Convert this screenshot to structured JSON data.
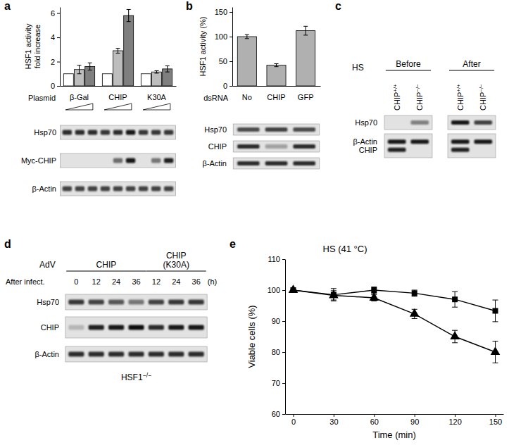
{
  "panel_labels": [
    "a",
    "b",
    "c",
    "d",
    "e"
  ],
  "chart_data": [
    {
      "type": "bar",
      "ylabel": [
        "HSF1 activity",
        "fold increase"
      ],
      "xlabel": "Plasmid",
      "categories": [
        "β-Gal",
        "CHIP",
        "K30A"
      ],
      "series": [
        {
          "color": "#ffffff",
          "values": [
            1,
            1,
            1
          ],
          "errors": [
            null,
            null,
            null
          ]
        },
        {
          "color": "#bdbdbd",
          "values": [
            1.35,
            2.9,
            1.15
          ],
          "errors": [
            0.35,
            0.2,
            0.1
          ]
        },
        {
          "color": "#7f7f7f",
          "values": [
            1.6,
            5.8,
            1.4
          ],
          "errors": [
            0.3,
            0.5,
            0.25
          ]
        }
      ],
      "ylim": [
        0,
        6.5
      ],
      "yticks": [
        0,
        2,
        4,
        6
      ]
    },
    {
      "type": "bar",
      "ylabel": "HSF1 activity (%)",
      "xlabel": "dsRNA",
      "categories": [
        "No",
        "CHIP",
        "GFP"
      ],
      "values": [
        100,
        42,
        112
      ],
      "errors": [
        4,
        3,
        9
      ],
      "color": "#b0b0b0",
      "ylim": [
        0,
        160
      ],
      "yticks": [
        0,
        50,
        100,
        150
      ]
    },
    {
      "type": "line",
      "title": "HS (41 °C)",
      "xlabel": "Time (min)",
      "ylabel": "Viable cells (%)",
      "x": [
        0,
        30,
        60,
        90,
        120,
        150
      ],
      "series": [
        {
          "color": "#000000",
          "marker": "square",
          "line_style": "solid",
          "values": [
            100,
            98.5,
            100,
            99,
            97,
            93.3
          ],
          "errors": [
            null,
            2,
            1,
            1,
            2.5,
            3.5
          ]
        },
        {
          "color": "#000000",
          "marker": "triangle",
          "line_style": "solid",
          "values": [
            100,
            98.3,
            97.5,
            92.3,
            85,
            80
          ],
          "errors": [
            null,
            1.5,
            1,
            1.5,
            2,
            3.5
          ]
        }
      ],
      "xlim": [
        -6,
        156
      ],
      "xticks": [
        0,
        30,
        60,
        90,
        120,
        150
      ],
      "ylim": [
        60,
        110
      ],
      "yticks": [
        60,
        70,
        80,
        90,
        100,
        110
      ]
    }
  ],
  "blots": {
    "a": {
      "boxes": [
        {
          "rows": [
            {
              "label": "Hsp70",
              "bands": [
                0.85,
                0.85,
                0.85,
                0.8,
                0.85,
                0.95,
                0.8,
                0.8,
                0.8
              ]
            }
          ]
        },
        {
          "rows": [
            {
              "label": "Myc-CHIP",
              "bands": [
                0,
                0,
                0,
                0,
                0.55,
                0.95,
                0,
                0.5,
                0.9
              ]
            }
          ]
        },
        {
          "rows": [
            {
              "label": "β-Actin",
              "bands": [
                0.75,
                0.75,
                0.75,
                0.75,
                0.75,
                0.75,
                0.75,
                0.75,
                0.75
              ]
            }
          ]
        }
      ]
    },
    "b": {
      "boxes": [
        {
          "rows": [
            {
              "label": "Hsp70",
              "bands": [
                0.7,
                0.75,
                0.7
              ]
            }
          ]
        },
        {
          "rows": [
            {
              "label": "CHIP",
              "bands": [
                0.85,
                0.3,
                0.85
              ]
            }
          ]
        },
        {
          "rows": [
            {
              "label": "β-Actin",
              "bands": [
                0.85,
                0.85,
                0.85
              ]
            }
          ]
        }
      ]
    },
    "c": {
      "title": "HS",
      "groups": [
        {
          "label": [
            "Before"
          ],
          "lanes": 2
        },
        {
          "label": [
            "After"
          ],
          "lanes": 2
        }
      ],
      "lanes": [
        "CHIP+/+",
        "CHIP−/−",
        "CHIP+/+",
        "CHIP−/−"
      ],
      "boxes": [
        {
          "rows": [
            {
              "label": "Hsp70",
              "bands": [
                0,
                0.45,
                0.95,
                0.75
              ]
            }
          ]
        },
        {
          "rows": [
            {
              "label": "β-Actin",
              "bands": [
                0.95,
                0.95,
                0.95,
                0.95
              ]
            },
            {
              "label": "CHIP",
              "bands": [
                0.9,
                0,
                0.9,
                0
              ]
            }
          ]
        }
      ]
    },
    "d": {
      "title": "AdV",
      "groups": [
        {
          "label": [
            "CHIP"
          ],
          "lanes": 4
        },
        {
          "label": [
            "CHIP",
            "(K30A)"
          ],
          "lanes": 3
        }
      ],
      "time_label": "After infect.",
      "lanes": [
        "0",
        "12",
        "24",
        "36",
        "12",
        "24",
        "36"
      ],
      "unit": "(h)",
      "boxes": [
        {
          "rows": [
            {
              "label": "Hsp70",
              "bands": [
                0.8,
                0.75,
                0.65,
                0.5,
                0.75,
                0.8,
                0.8
              ]
            }
          ]
        },
        {
          "rows": [
            {
              "label": "CHIP",
              "bands": [
                0.2,
                0.9,
                0.95,
                1,
                0.85,
                0.95,
                0.95
              ]
            }
          ]
        },
        {
          "rows": [
            {
              "label": "β-Actin",
              "bands": [
                0.85,
                0.85,
                0.85,
                0.85,
                0.85,
                0.85,
                0.85
              ]
            }
          ]
        }
      ],
      "footer": "HSF1−/−"
    }
  }
}
